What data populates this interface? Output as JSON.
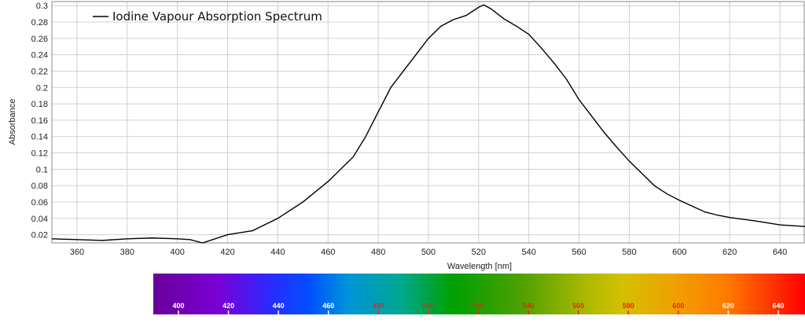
{
  "chart_data": {
    "type": "line",
    "title": "",
    "xlabel": "Wavelength [nm]",
    "ylabel": "Absorbance",
    "xlim": [
      350,
      650
    ],
    "ylim": [
      0.01,
      0.305
    ],
    "grid": true,
    "legend_position": "top-left",
    "x_ticks": [
      "360",
      "380",
      "400",
      "420",
      "440",
      "460",
      "480",
      "500",
      "520",
      "540",
      "560",
      "580",
      "600",
      "620",
      "640"
    ],
    "y_ticks": [
      "0.02",
      "0.04",
      "0.06",
      "0.08",
      "0.1",
      "0.12",
      "0.14",
      "0.16",
      "0.18",
      "0.2",
      "0.22",
      "0.24",
      "0.26",
      "0.28",
      "0.3"
    ],
    "series": [
      {
        "name": "Iodine Vapour Absorption Spectrum",
        "color": "#000000",
        "x": [
          350,
          360,
          370,
          380,
          390,
          400,
          405,
          410,
          420,
          430,
          440,
          450,
          460,
          470,
          475,
          480,
          485,
          490,
          495,
          500,
          505,
          510,
          515,
          520,
          522,
          525,
          530,
          535,
          540,
          545,
          550,
          555,
          560,
          565,
          570,
          575,
          580,
          585,
          590,
          595,
          600,
          605,
          610,
          615,
          620,
          630,
          640,
          650
        ],
        "y": [
          0.015,
          0.014,
          0.013,
          0.015,
          0.016,
          0.015,
          0.014,
          0.01,
          0.02,
          0.025,
          0.04,
          0.06,
          0.085,
          0.115,
          0.14,
          0.17,
          0.2,
          0.22,
          0.24,
          0.26,
          0.275,
          0.283,
          0.288,
          0.298,
          0.301,
          0.296,
          0.284,
          0.275,
          0.265,
          0.248,
          0.23,
          0.21,
          0.185,
          0.165,
          0.145,
          0.127,
          0.11,
          0.095,
          0.08,
          0.07,
          0.062,
          0.055,
          0.048,
          0.044,
          0.041,
          0.037,
          0.032,
          0.03
        ]
      }
    ],
    "spectrum_strip": {
      "labels": [
        "400",
        "420",
        "440",
        "460",
        "480",
        "500",
        "520",
        "540",
        "560",
        "580",
        "600",
        "620",
        "640"
      ],
      "label_colors": [
        "#ffffff",
        "#ffffff",
        "#ffffff",
        "#ffffff",
        "#ff1a1a",
        "#ff1a1a",
        "#ff1a1a",
        "#ff1a1a",
        "#ff1a1a",
        "#ff1a1a",
        "#ff1a1a",
        "#ffffff",
        "#ffffff"
      ]
    }
  }
}
